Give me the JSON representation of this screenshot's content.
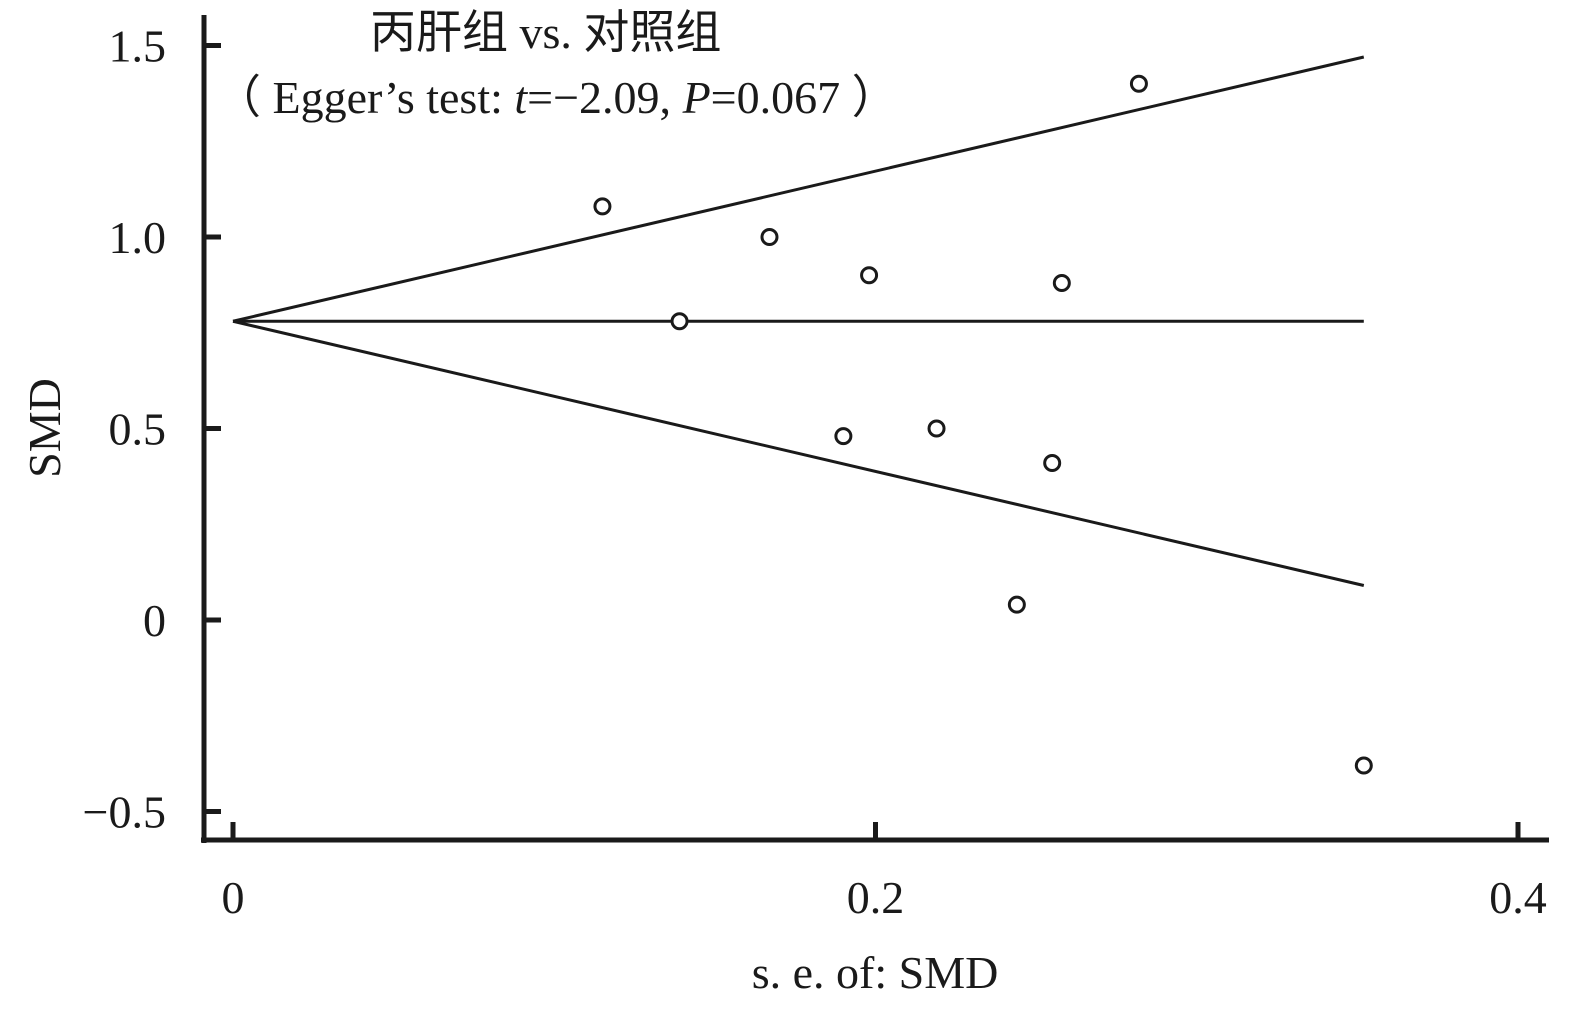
{
  "chart_data": {
    "type": "scatter",
    "title": "丙肝组 vs. 对照组",
    "subtitle": {
      "open": "（ Egger’s test: ",
      "t_sym": "t",
      "t_val": "=−2.09, ",
      "p_sym": "P",
      "p_val": "=0.067 ）"
    },
    "xlabel": "s. e. of: SMD",
    "ylabel": "SMD",
    "xlim": [
      0,
      0.4
    ],
    "ylim": [
      -0.5,
      1.5
    ],
    "x_ticks": [
      0,
      0.2,
      0.4
    ],
    "x_tick_labels": [
      "0",
      "0.2",
      "0.4"
    ],
    "y_ticks": [
      -0.5,
      0,
      0.5,
      1.0,
      1.5
    ],
    "y_tick_labels": [
      "−0.5",
      "0",
      "0.5",
      "1.0",
      "1.5"
    ],
    "pooled_smd": 0.78,
    "funnel_max_se": 0.352,
    "points": [
      {
        "x": 0.115,
        "y": 1.08
      },
      {
        "x": 0.139,
        "y": 0.78
      },
      {
        "x": 0.167,
        "y": 1.0
      },
      {
        "x": 0.19,
        "y": 0.48
      },
      {
        "x": 0.198,
        "y": 0.9
      },
      {
        "x": 0.219,
        "y": 0.5
      },
      {
        "x": 0.244,
        "y": 0.04
      },
      {
        "x": 0.255,
        "y": 0.41
      },
      {
        "x": 0.258,
        "y": 0.88
      },
      {
        "x": 0.282,
        "y": 1.4
      },
      {
        "x": 0.352,
        "y": -0.38
      }
    ]
  }
}
